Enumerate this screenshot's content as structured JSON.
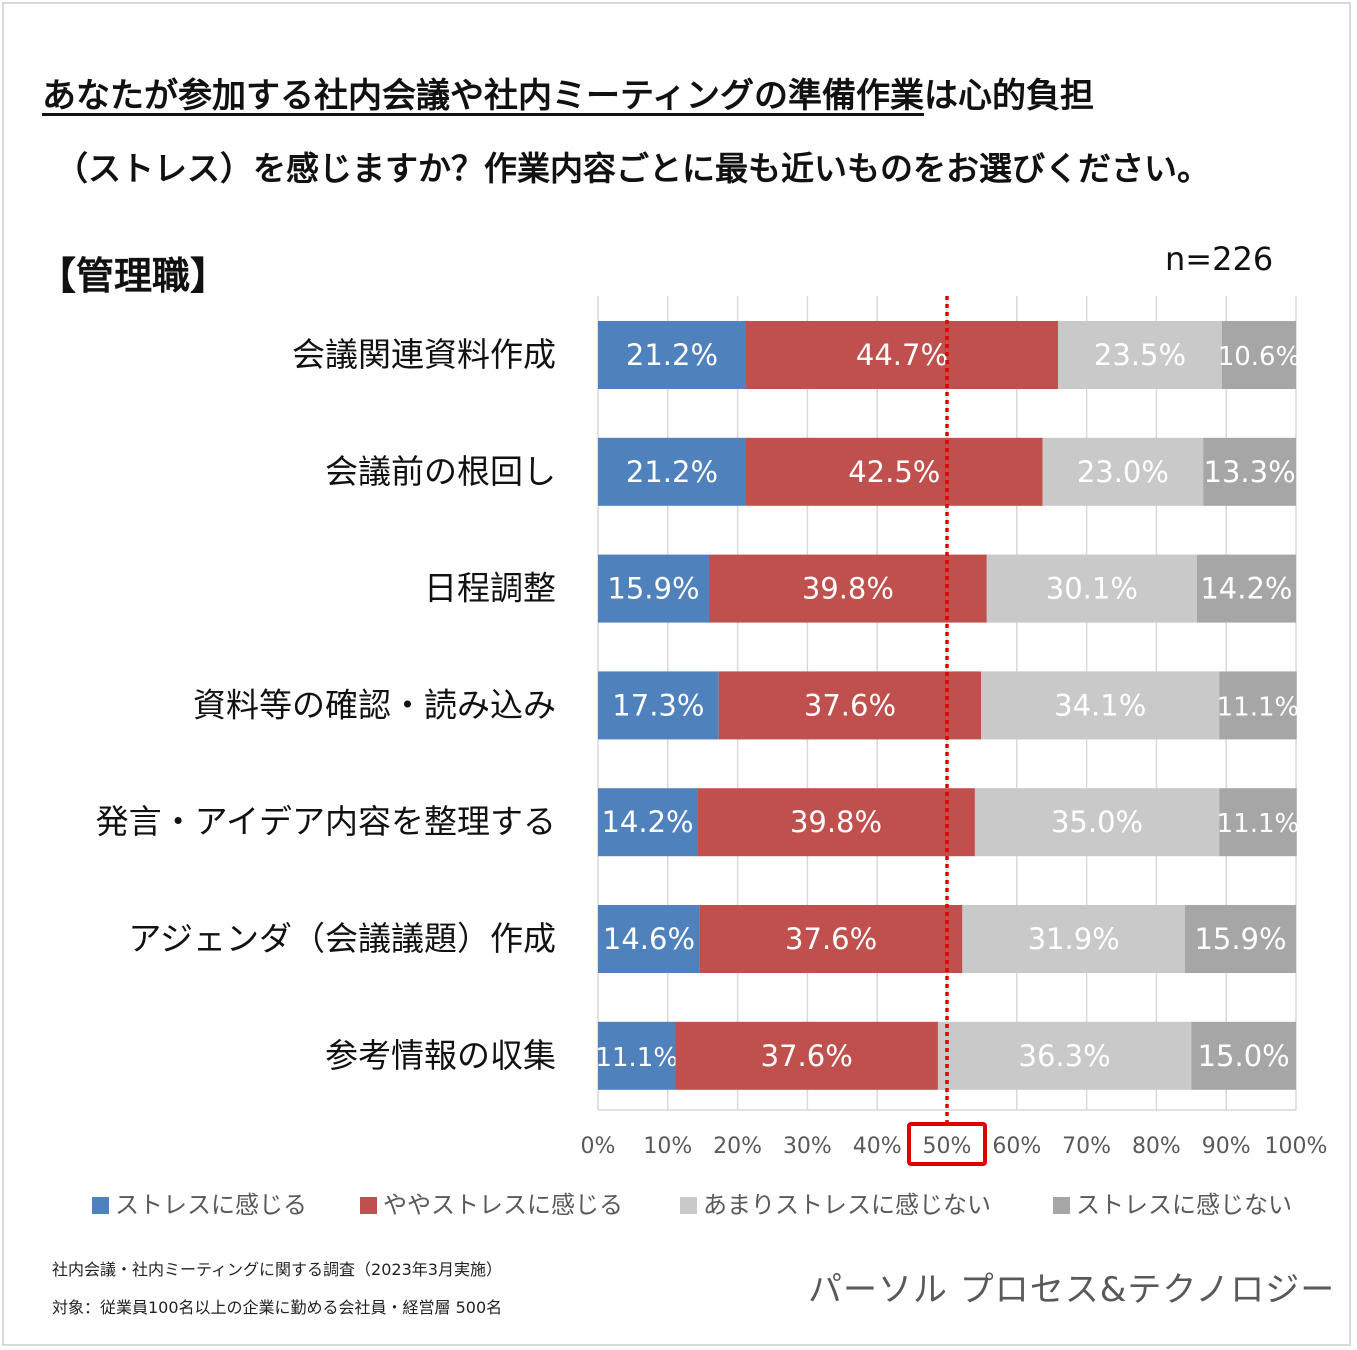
{
  "header": {
    "title_line1_underlined": "あなたが参加する社内会議や社内ミーティングの準備作業",
    "title_line1_rest": "は心的負担",
    "title_line2": "（ストレス）を感じますか？作業内容ごとに最も近いものをお選びください。",
    "group_label": "【管理職】",
    "sample_size": "n=226"
  },
  "chart_data": {
    "type": "bar",
    "orientation": "horizontal",
    "stacked": true,
    "categories": [
      "会議関連資料作成",
      "会議前の根回し",
      "日程調整",
      "資料等の確認・読み込み",
      "発言・アイデア内容を整理する",
      "アジェンダ（会議議題）作成",
      "参考情報の収集"
    ],
    "series": [
      {
        "name": "ストレスに感じる",
        "color": "#4f81bd",
        "values": [
          21.2,
          21.2,
          15.9,
          17.3,
          14.2,
          14.6,
          11.1
        ],
        "labels": [
          "21.2%",
          "21.2%",
          "15.9%",
          "17.3%",
          "14.2%",
          "14.6%",
          "11.1%"
        ]
      },
      {
        "name": "ややストレスに感じる",
        "color": "#c0504d",
        "values": [
          44.7,
          42.5,
          39.8,
          37.6,
          39.8,
          37.6,
          37.6
        ],
        "labels": [
          "44.7%",
          "42.5%",
          "39.8%",
          "37.6%",
          "39.8%",
          "37.6%",
          "37.6%"
        ]
      },
      {
        "name": "あまりストレスに感じない",
        "color": "#c9c9c9",
        "values": [
          23.5,
          23.0,
          30.1,
          34.1,
          35.0,
          31.9,
          36.3
        ],
        "labels": [
          "23.5%",
          "23.0%",
          "30.1%",
          "34.1%",
          "35.0%",
          "31.9%",
          "36.3%"
        ]
      },
      {
        "name": "ストレスに感じない",
        "color": "#a6a6a6",
        "values": [
          10.6,
          13.3,
          14.2,
          11.1,
          11.1,
          15.9,
          15.0
        ],
        "labels": [
          "10.6%",
          "13.3%",
          "14.2%",
          "11.1%",
          "11.1%",
          "15.9%",
          "15.0%"
        ]
      }
    ],
    "x_ticks": [
      "0%",
      "10%",
      "20%",
      "30%",
      "40%",
      "50%",
      "60%",
      "70%",
      "80%",
      "90%",
      "100%"
    ],
    "xlim": [
      0,
      100
    ],
    "grid": true,
    "reference_line": {
      "value": 50,
      "style": "dotted",
      "color": "#e00000"
    },
    "highlighted_tick": "50%",
    "legend_position": "bottom"
  },
  "footer": {
    "survey": "社内会議・社内ミーティングに関する調査（2023年3月実施）",
    "target": "対象：従業員100名以上の企業に勤める会社員・経営層 500名",
    "brand": "パーソル プロセス&テクノロジー"
  }
}
